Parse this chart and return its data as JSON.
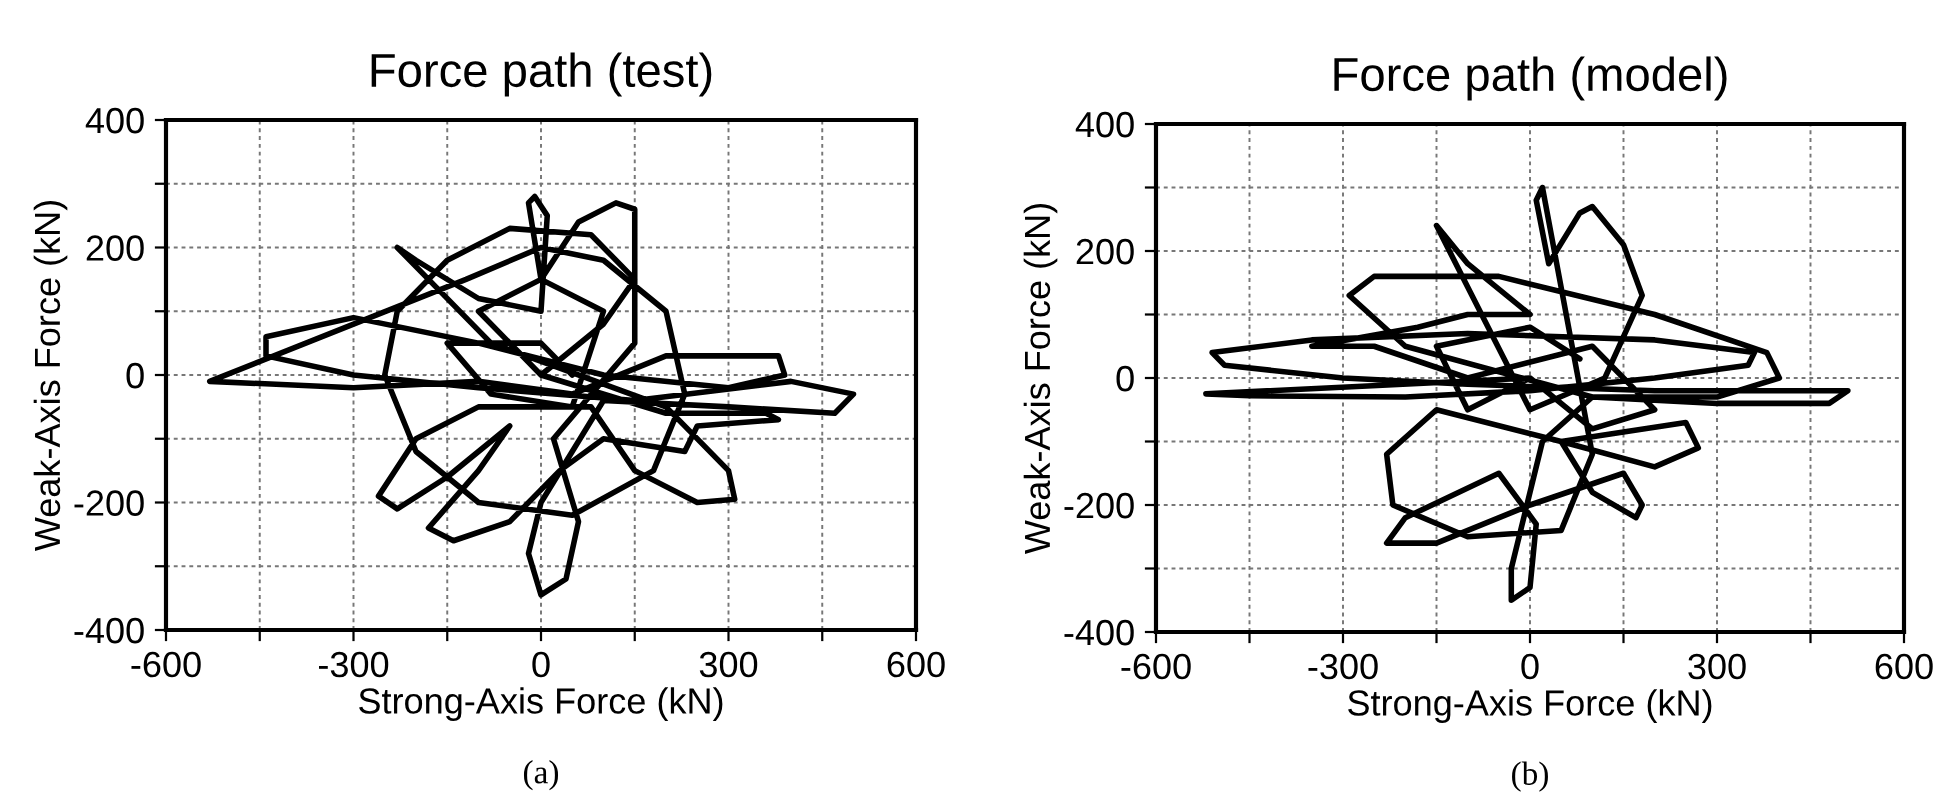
{
  "chart_data": [
    {
      "type": "line",
      "title": "Force path (test)",
      "xlabel": "Strong-Axis Force (kN)",
      "ylabel": "Weak-Axis Force (kN)",
      "annotations": [
        "(a)"
      ],
      "xlim": [
        -600,
        600
      ],
      "ylim": [
        -400,
        400
      ],
      "xticks": [
        -600,
        {
          "value": -450,
          "label": null
        },
        -300,
        {
          "value": -150,
          "label": null
        },
        0,
        {
          "value": 150,
          "label": null
        },
        300,
        {
          "value": 450,
          "label": null
        },
        600
      ],
      "yticks": [
        -400,
        {
          "value": -300,
          "label": null
        },
        -200,
        {
          "value": -100,
          "label": null
        },
        0,
        {
          "value": 100,
          "label": null
        },
        200,
        {
          "value": 300,
          "label": null
        },
        400
      ],
      "grid": true,
      "marker": "none",
      "line_style": "solid",
      "series": [
        {
          "color": "#000000",
          "x": [
            0,
            100,
            150,
            80,
            -50,
            -150,
            -230,
            -250,
            -200,
            -100,
            50,
            180,
            230,
            200,
            100,
            0,
            -120,
            -530,
            -300,
            -100,
            50,
            200,
            380,
            390,
            300,
            100,
            -100,
            -300,
            -440,
            -440,
            -300,
            -100,
            150,
            400,
            500,
            470,
            300,
            100,
            0,
            -20,
            0,
            40,
            60,
            20,
            150,
            150,
            120,
            60,
            0,
            -20,
            -10,
            10,
            0,
            -100,
            -200,
            -230,
            -180,
            -80,
            200,
            300,
            310,
            250,
            150,
            80,
            -100,
            -200,
            -260,
            -230,
            -150,
            -50,
            -100,
            -180,
            -140,
            -50,
            30,
            100,
            230,
            250,
            380,
            360,
            200,
            0,
            -100,
            0,
            100,
            50,
            -80,
            -150,
            0,
            50
          ],
          "values": [
            0,
            80,
            150,
            220,
            230,
            180,
            100,
            0,
            -120,
            -200,
            -220,
            -150,
            -30,
            100,
            180,
            200,
            150,
            -10,
            -20,
            -10,
            -30,
            30,
            30,
            0,
            -20,
            0,
            50,
            90,
            60,
            30,
            0,
            -20,
            -40,
            -10,
            -30,
            -60,
            -50,
            -40,
            -200,
            -280,
            -345,
            -320,
            -230,
            -100,
            50,
            260,
            270,
            240,
            150,
            270,
            280,
            250,
            100,
            120,
            180,
            200,
            150,
            50,
            -50,
            -150,
            -195,
            -200,
            -150,
            -50,
            -50,
            -100,
            -190,
            -210,
            -160,
            -80,
            -150,
            -240,
            -260,
            -230,
            -150,
            -100,
            -120,
            -80,
            -70,
            -60,
            -60,
            0,
            100,
            150,
            100,
            -50,
            -30,
            50,
            50,
            0
          ]
        }
      ]
    },
    {
      "type": "line",
      "title": "Force path (model)",
      "xlabel": "Strong-Axis Force (kN)",
      "ylabel": "Weak-Axis Force (kN)",
      "annotations": [
        "(b)"
      ],
      "xlim": [
        -600,
        600
      ],
      "ylim": [
        -400,
        400
      ],
      "xticks": [
        -600,
        {
          "value": -450,
          "label": null
        },
        -300,
        {
          "value": -150,
          "label": null
        },
        0,
        {
          "value": 150,
          "label": null
        },
        300,
        {
          "value": 450,
          "label": null
        },
        600
      ],
      "yticks": [
        -400,
        {
          "value": -300,
          "label": null
        },
        -200,
        {
          "value": -100,
          "label": null
        },
        0,
        {
          "value": 100,
          "label": null
        },
        200,
        {
          "value": 300,
          "label": null
        },
        400
      ],
      "grid": true,
      "marker": "none",
      "line_style": "solid",
      "series": [
        {
          "color": "#000000",
          "x": [
            0,
            -520,
            -450,
            -200,
            0,
            200,
            350,
            360,
            200,
            -100,
            -350,
            -510,
            -490,
            -300,
            -100,
            200,
            450,
            510,
            480,
            300,
            100,
            -200,
            -290,
            -250,
            -50,
            200,
            380,
            400,
            300,
            100,
            20,
            -30,
            -30,
            0,
            10,
            -50,
            -200,
            -230,
            -150,
            0,
            150,
            180,
            170,
            100,
            50,
            250,
            270,
            200,
            50,
            -150,
            -230,
            -220,
            -100,
            50,
            100,
            20,
            10,
            30,
            80,
            100,
            150,
            180,
            120,
            0,
            -150,
            -100,
            0,
            -100,
            -180,
            -350,
            -250,
            -100,
            100,
            200,
            100,
            0,
            -100,
            -150,
            0,
            80
          ],
          "values": [
            0,
            -25,
            -28,
            -30,
            -20,
            0,
            20,
            40,
            60,
            70,
            60,
            40,
            20,
            0,
            -10,
            -20,
            -20,
            -20,
            -40,
            -40,
            -30,
            50,
            130,
            160,
            160,
            100,
            40,
            0,
            -30,
            -30,
            -100,
            -300,
            -350,
            -330,
            -230,
            -150,
            -220,
            -260,
            -260,
            -200,
            -150,
            -200,
            -220,
            -180,
            -100,
            -70,
            -110,
            -140,
            -100,
            -50,
            -120,
            -200,
            -250,
            -240,
            -120,
            300,
            280,
            180,
            260,
            270,
            210,
            130,
            0,
            -50,
            240,
            180,
            100,
            100,
            80,
            50,
            50,
            0,
            50,
            -50,
            -80,
            0,
            -50,
            50,
            80,
            30
          ]
        }
      ]
    }
  ]
}
